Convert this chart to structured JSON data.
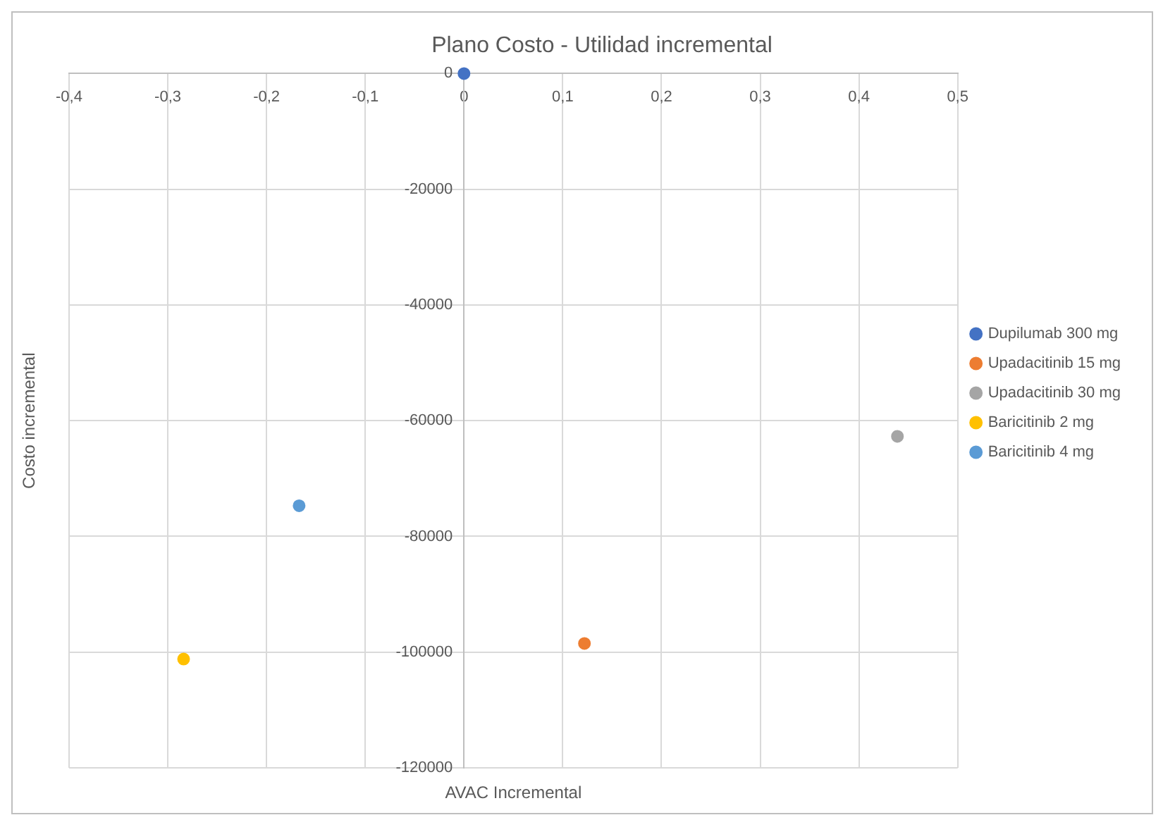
{
  "chart_data": {
    "type": "scatter",
    "title": "Plano Costo - Utilidad incremental",
    "xlabel": "AVAC Incremental",
    "ylabel": "Costo incremental",
    "series": [
      {
        "name": "Dupilumab 300 mg",
        "color": "#4472c4",
        "x": [
          0
        ],
        "values": [
          0
        ]
      },
      {
        "name": "Upadacitinib 15 mg",
        "color": "#ed7d31",
        "x": [
          0.122
        ],
        "values": [
          -98500
        ]
      },
      {
        "name": "Upadacitinib 30 mg",
        "color": "#a5a5a5",
        "x": [
          0.439
        ],
        "values": [
          -62700
        ]
      },
      {
        "name": "Baricitinib 2 mg",
        "color": "#ffc000",
        "x": [
          -0.284
        ],
        "values": [
          -101200
        ]
      },
      {
        "name": "Baricitinib 4 mg",
        "color": "#5b9bd5",
        "x": [
          -0.167
        ],
        "values": [
          -74700
        ]
      }
    ],
    "xlim": [
      -0.4,
      0.5
    ],
    "xticks": [
      {
        "value": -0.4,
        "label": "-0,4"
      },
      {
        "value": -0.3,
        "label": "-0,3"
      },
      {
        "value": -0.2,
        "label": "-0,2"
      },
      {
        "value": -0.1,
        "label": "-0,1"
      },
      0,
      {
        "value": 0.1,
        "label": "0,1"
      },
      {
        "value": 0.2,
        "label": "0,2"
      },
      {
        "value": 0.3,
        "label": "0,3"
      },
      {
        "value": 0.4,
        "label": "0,4"
      },
      {
        "value": 0.5,
        "label": "0,5"
      }
    ],
    "ylim": [
      -120000,
      0
    ],
    "yticks": [
      -120000,
      -100000,
      -80000,
      -60000,
      -40000,
      -20000,
      0
    ],
    "grid": true,
    "legend": "right",
    "marker": "circle"
  }
}
